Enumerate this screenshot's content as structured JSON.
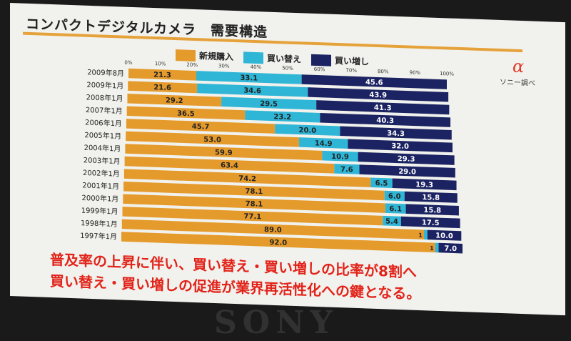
{
  "slide": {
    "title": "コンパクトデジタルカメラ　需要構造",
    "brand_mark": "α",
    "source_note": "ソニー調べ",
    "message_line1": "普及率の上昇に伴い、買い替え・買い増しの比率が8割へ",
    "message_line2": "買い替え・買い増しの促進が業界再活性化への鍵となる。",
    "footer_logo": "SONY"
  },
  "chart_data": {
    "type": "bar",
    "stacked": true,
    "orientation": "horizontal",
    "percent_stacked": true,
    "x_ticks": [
      "0%",
      "10%",
      "20%",
      "30%",
      "40%",
      "50%",
      "60%",
      "70%",
      "80%",
      "90%",
      "100%"
    ],
    "xlim": [
      0,
      100
    ],
    "legend_position": "top",
    "categories": [
      "2009年8月",
      "2009年1月",
      "2008年1月",
      "2007年1月",
      "2006年1月",
      "2005年1月",
      "2004年1月",
      "2003年1月",
      "2002年1月",
      "2001年1月",
      "2000年1月",
      "1999年1月",
      "1998年1月",
      "1997年1月"
    ],
    "series": [
      {
        "name": "新規購入",
        "color": "#e59a2c",
        "values": [
          21.3,
          21.6,
          29.2,
          36.5,
          45.7,
          53.0,
          59.9,
          63.4,
          74.2,
          78.1,
          78.1,
          77.1,
          89.0,
          92.0
        ],
        "labels": [
          "21.3",
          "21.6",
          "29.2",
          "36.5",
          "45.7",
          "53.0",
          "59.9",
          "63.4",
          "74.2",
          "78.1",
          "78.1",
          "77.1",
          "89.0",
          "92.0"
        ]
      },
      {
        "name": "買い替え",
        "color": "#2fb5d6",
        "values": [
          33.1,
          34.6,
          29.5,
          23.2,
          20.0,
          14.9,
          10.9,
          7.6,
          6.5,
          6.0,
          6.1,
          5.4,
          1,
          1
        ],
        "labels": [
          "33.1",
          "34.6",
          "29.5",
          "23.2",
          "20.0",
          "14.9",
          "10.9",
          "7.6",
          "6.5",
          "6.0",
          "6.1",
          "5.4",
          "1",
          "1"
        ]
      },
      {
        "name": "買い増し",
        "color": "#1c2362",
        "values": [
          45.6,
          43.9,
          41.3,
          40.3,
          34.3,
          32.0,
          29.3,
          29.0,
          19.3,
          15.8,
          15.8,
          17.5,
          10.0,
          7.0
        ],
        "labels": [
          "45.6",
          "43.9",
          "41.3",
          "40.3",
          "34.3",
          "32.0",
          "29.3",
          "29.0",
          "19.3",
          "15.8",
          "15.8",
          "17.5",
          "10.0",
          "7.0"
        ]
      }
    ]
  }
}
